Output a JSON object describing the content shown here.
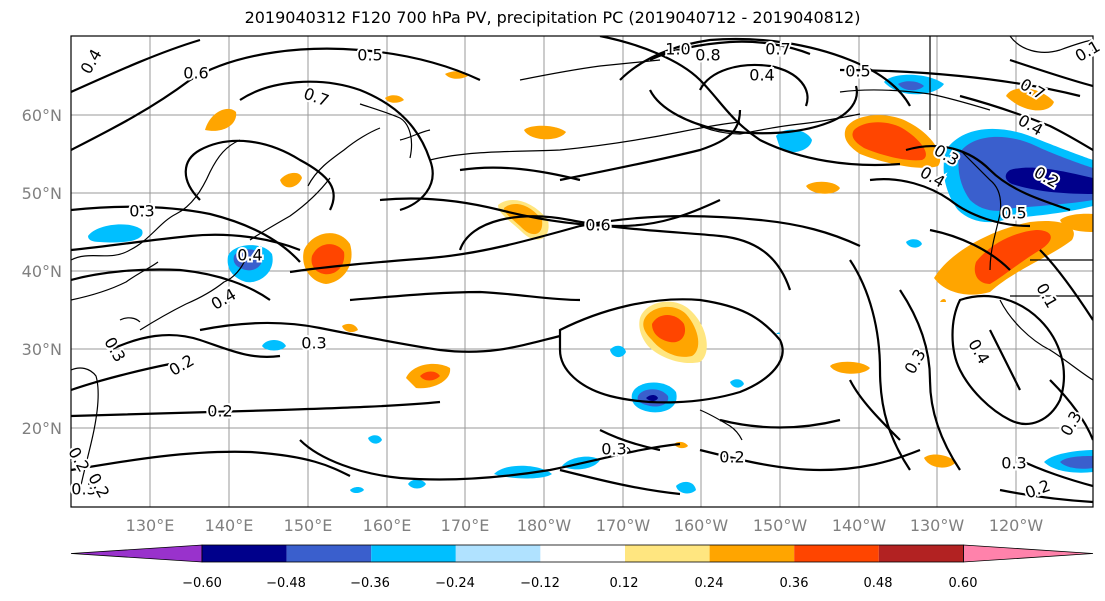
{
  "title": "2019040312 F120 700 hPa PV, precipitation PC (2019040712 - 2019040812)",
  "map": {
    "lat_labels": [
      "60°N",
      "50°N",
      "40°N",
      "30°N",
      "20°N"
    ],
    "lon_labels": [
      "130°E",
      "140°E",
      "150°E",
      "160°E",
      "170°E",
      "180°W",
      "170°W",
      "160°W",
      "150°W",
      "140°W",
      "130°W",
      "120°W"
    ],
    "contour_labels": [
      "0.4",
      "0.6",
      "0.5",
      "0.7",
      "1.0",
      "0.8",
      "0.7",
      "0.4",
      "0.5",
      "0.7",
      "0.4",
      "0.3",
      "0.2",
      "0.5",
      "0.3",
      "0.4",
      "0.4",
      "0.6",
      "0.3",
      "0.2",
      "0.3",
      "0.2",
      "0.2",
      "0.3",
      "0.2",
      "0.3",
      "0.4",
      "0.3",
      "0.2",
      "0.3",
      "0.1",
      "0.1",
      "0.4",
      "0.3",
      "0.2"
    ]
  },
  "colorbar": {
    "colors": [
      "#9932cc",
      "#00008b",
      "#3a5fcd",
      "#00bfff",
      "#b0e2ff",
      "#ffffff",
      "#ffe680",
      "#ffa500",
      "#ff4500",
      "#b22222",
      "#ff82ab"
    ],
    "tick_labels": [
      "−0.60",
      "−0.48",
      "−0.36",
      "−0.24",
      "−0.12",
      "0.12",
      "0.24",
      "0.36",
      "0.48",
      "0.60"
    ]
  }
}
